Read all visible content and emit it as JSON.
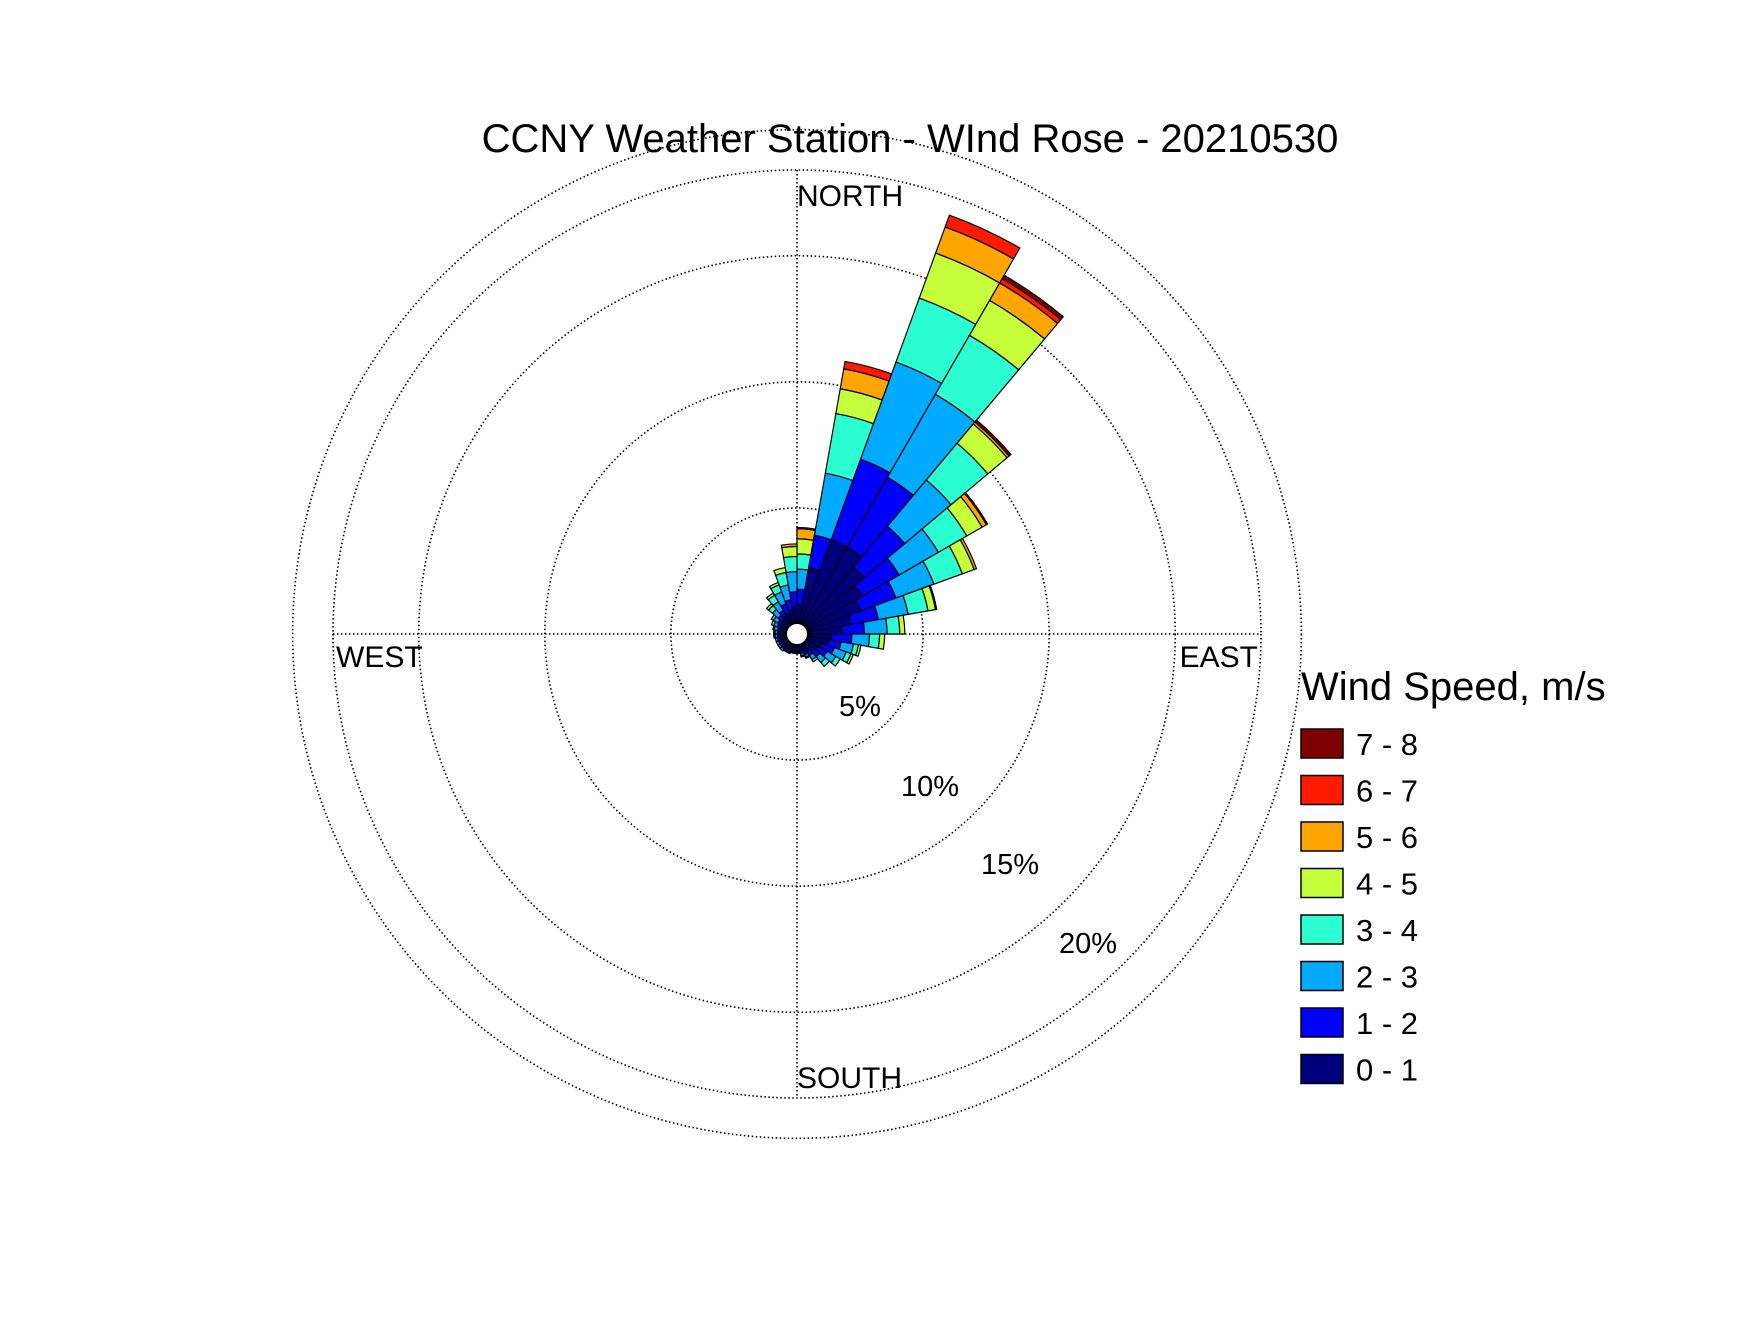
{
  "chart_data": {
    "type": "wind-rose",
    "title": "CCNY Weather Station - WInd Rose - 20210530",
    "direction_labels": {
      "north": "NORTH",
      "east": "EAST",
      "south": "SOUTH",
      "west": "WEST"
    },
    "radial_unit": "percent of observations",
    "ring_values": [
      5,
      10,
      15,
      20
    ],
    "ring_labels": [
      "5%",
      "10%",
      "15%",
      "20%"
    ],
    "radial_max": 20,
    "angular_bins_deg_from_north": [
      0,
      10,
      20,
      30,
      40,
      50,
      60,
      70,
      80,
      90,
      100,
      110,
      120,
      130,
      140,
      150,
      160,
      170,
      180,
      190,
      200,
      210,
      220,
      230,
      240,
      250,
      260,
      270,
      280,
      290,
      300,
      310,
      320,
      330,
      340,
      350
    ],
    "legend": {
      "title": "Wind Speed, m/s",
      "placement": "right"
    },
    "speed_classes": [
      {
        "label": "0 - 1",
        "color": "#00007F"
      },
      {
        "label": "1 - 2",
        "color": "#0000FF"
      },
      {
        "label": "2 - 3",
        "color": "#00AAFF"
      },
      {
        "label": "3 - 4",
        "color": "#2BFFD2"
      },
      {
        "label": "4 - 5",
        "color": "#C4FF3A"
      },
      {
        "label": "5 - 6",
        "color": "#FFA500"
      },
      {
        "label": "6 - 7",
        "color": "#FF1A00"
      },
      {
        "label": "7 - 8",
        "color": "#7F0000"
      }
    ],
    "cumulative_percent_by_direction": [
      [
        0.7,
        1.3,
        2.1,
        2.7,
        3.3,
        3.7,
        3.75,
        3.75
      ],
      [
        2.2,
        3.5,
        6.0,
        8.4,
        9.4,
        10.2,
        10.5,
        10.5
      ],
      [
        3.5,
        6.9,
        11.0,
        13.7,
        15.6,
        16.7,
        17.2,
        17.2
      ],
      [
        3.5,
        6.7,
        10.5,
        13.2,
        14.8,
        15.6,
        15.8,
        15.95
      ],
      [
        3.0,
        5.1,
        7.5,
        9.4,
        10.4,
        10.5,
        10.5,
        10.6
      ],
      [
        2.5,
        4.2,
        6.0,
        7.3,
        8.0,
        8.2,
        8.25,
        8.25
      ],
      [
        2.2,
        3.7,
        5.3,
        6.5,
        7.0,
        7.1,
        7.1,
        7.1
      ],
      [
        1.7,
        2.8,
        4.0,
        4.8,
        5.1,
        5.15,
        5.15,
        5.15
      ],
      [
        1.3,
        2.2,
        3.1,
        3.6,
        3.8,
        3.8,
        3.8,
        3.8
      ],
      [
        0.9,
        1.7,
        2.4,
        2.8,
        3.0,
        3.0,
        3.0,
        3.0
      ],
      [
        0.8,
        1.3,
        1.8,
        2.0,
        2.1,
        2.1,
        2.1,
        2.1
      ],
      [
        0.6,
        1.1,
        1.6,
        1.8,
        1.9,
        1.9,
        1.9,
        1.9
      ],
      [
        0.5,
        0.9,
        1.3,
        1.5,
        1.5,
        1.5,
        1.5,
        1.5
      ],
      [
        0.4,
        0.7,
        1.0,
        1.2,
        1.2,
        1.2,
        1.2,
        1.2
      ],
      [
        0.3,
        0.5,
        0.7,
        0.8,
        0.8,
        0.8,
        0.8,
        0.8
      ],
      [
        0.3,
        0.4,
        0.5,
        0.55,
        0.55,
        0.55,
        0.55,
        0.55
      ],
      [
        0.2,
        0.3,
        0.4,
        0.45,
        0.45,
        0.45,
        0.45,
        0.45
      ],
      [
        0.2,
        0.25,
        0.3,
        0.3,
        0.3,
        0.3,
        0.3,
        0.3
      ],
      [
        0.2,
        0.25,
        0.3,
        0.3,
        0.3,
        0.3,
        0.3,
        0.3
      ],
      [
        0.2,
        0.25,
        0.3,
        0.3,
        0.3,
        0.3,
        0.3,
        0.3
      ],
      [
        0.2,
        0.3,
        0.35,
        0.35,
        0.35,
        0.35,
        0.35,
        0.35
      ],
      [
        0.2,
        0.3,
        0.35,
        0.35,
        0.35,
        0.35,
        0.35,
        0.35
      ],
      [
        0.2,
        0.3,
        0.4,
        0.4,
        0.4,
        0.4,
        0.4,
        0.4
      ],
      [
        0.2,
        0.3,
        0.4,
        0.4,
        0.4,
        0.4,
        0.4,
        0.4
      ],
      [
        0.2,
        0.3,
        0.4,
        0.4,
        0.4,
        0.4,
        0.4,
        0.4
      ],
      [
        0.2,
        0.3,
        0.4,
        0.4,
        0.4,
        0.4,
        0.4,
        0.4
      ],
      [
        0.2,
        0.3,
        0.4,
        0.45,
        0.45,
        0.45,
        0.45,
        0.45
      ],
      [
        0.2,
        0.3,
        0.4,
        0.45,
        0.45,
        0.45,
        0.45,
        0.45
      ],
      [
        0.2,
        0.3,
        0.45,
        0.5,
        0.5,
        0.5,
        0.5,
        0.5
      ],
      [
        0.2,
        0.35,
        0.5,
        0.6,
        0.6,
        0.6,
        0.6,
        0.6
      ],
      [
        0.25,
        0.4,
        0.6,
        0.7,
        0.7,
        0.7,
        0.7,
        0.7
      ],
      [
        0.3,
        0.5,
        0.8,
        1.0,
        1.1,
        1.1,
        1.1,
        1.1
      ],
      [
        0.35,
        0.6,
        1.0,
        1.3,
        1.4,
        1.4,
        1.4,
        1.4
      ],
      [
        0.4,
        0.8,
        1.3,
        1.6,
        1.7,
        1.7,
        1.7,
        1.7
      ],
      [
        0.5,
        0.9,
        1.5,
        2.0,
        2.2,
        2.2,
        2.2,
        2.2
      ],
      [
        0.6,
        1.2,
        2.0,
        2.6,
        3.0,
        3.1,
        3.1,
        3.1
      ]
    ]
  }
}
